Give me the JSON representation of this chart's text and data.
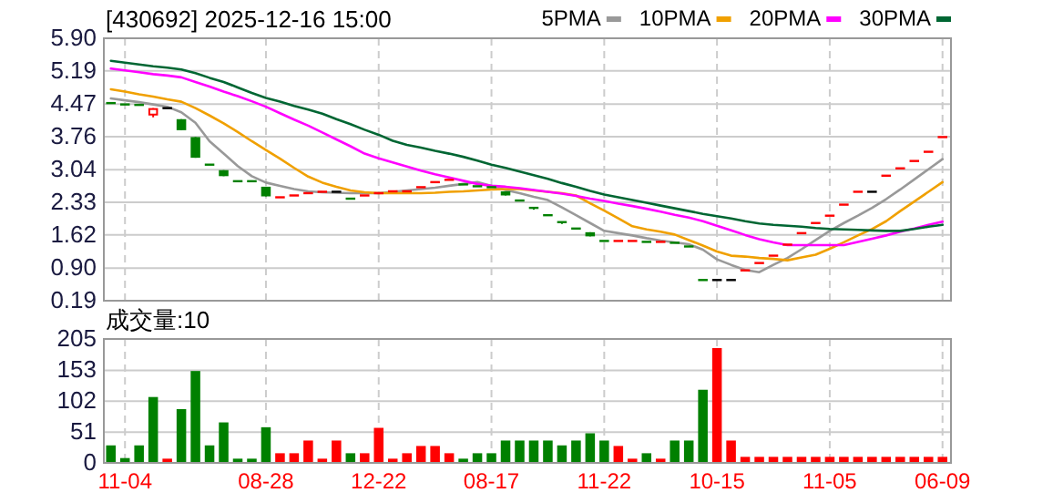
{
  "chart_data": [
    {
      "type": "candlestick",
      "title": "[430692] 2025-12-16 15:00",
      "categories": [
        null,
        null,
        null,
        null,
        null,
        null,
        null,
        null,
        null,
        null,
        null,
        null,
        null,
        null,
        null,
        null,
        null,
        null,
        null,
        null,
        null,
        null,
        null,
        null,
        null,
        null,
        null,
        null,
        null,
        null,
        null,
        null,
        null,
        null,
        null,
        null,
        null,
        null,
        null,
        null,
        null,
        null,
        null,
        null,
        null,
        null,
        null,
        null,
        null,
        null,
        null,
        null,
        null,
        null,
        null,
        null,
        null,
        null,
        null,
        null
      ],
      "ohlc": [
        [
          4.49,
          4.49,
          4.49,
          4.49
        ],
        [
          4.46,
          4.46,
          4.46,
          4.46
        ],
        [
          4.45,
          4.45,
          4.45,
          4.45
        ],
        [
          4.22,
          4.38,
          4.18,
          4.38
        ],
        [
          4.38,
          4.38,
          4.38,
          4.38
        ],
        [
          4.14,
          4.14,
          3.9,
          3.9
        ],
        [
          3.75,
          3.75,
          3.3,
          3.3
        ],
        [
          3.15,
          3.15,
          3.15,
          3.15
        ],
        [
          3.03,
          3.03,
          2.9,
          2.9
        ],
        [
          2.79,
          2.79,
          2.79,
          2.79
        ],
        [
          2.79,
          2.79,
          2.79,
          2.79
        ],
        [
          2.67,
          2.67,
          2.46,
          2.46
        ],
        [
          2.44,
          2.44,
          2.44,
          2.44
        ],
        [
          2.48,
          2.48,
          2.48,
          2.48
        ],
        [
          2.53,
          2.53,
          2.53,
          2.53
        ],
        [
          2.56,
          2.56,
          2.56,
          2.56
        ],
        [
          2.56,
          2.56,
          2.56,
          2.56
        ],
        [
          2.41,
          2.41,
          2.41,
          2.41
        ],
        [
          2.48,
          2.48,
          2.48,
          2.48
        ],
        [
          2.53,
          2.53,
          2.53,
          2.53
        ],
        [
          2.57,
          2.57,
          2.57,
          2.57
        ],
        [
          2.57,
          2.57,
          2.57,
          2.57
        ],
        [
          2.66,
          2.66,
          2.66,
          2.66
        ],
        [
          2.77,
          2.77,
          2.77,
          2.77
        ],
        [
          2.82,
          2.82,
          2.82,
          2.82
        ],
        [
          2.72,
          2.72,
          2.72,
          2.72
        ],
        [
          2.68,
          2.68,
          2.68,
          2.68
        ],
        [
          2.66,
          2.66,
          2.66,
          2.66
        ],
        [
          2.57,
          2.57,
          2.48,
          2.48
        ],
        [
          2.37,
          2.37,
          2.37,
          2.37
        ],
        [
          2.21,
          2.21,
          2.17,
          2.21
        ],
        [
          2.05,
          2.05,
          2.05,
          2.05
        ],
        [
          1.9,
          1.9,
          1.86,
          1.9
        ],
        [
          1.76,
          1.76,
          1.76,
          1.76
        ],
        [
          1.68,
          1.68,
          1.59,
          1.59
        ],
        [
          1.49,
          1.49,
          1.49,
          1.49
        ],
        [
          1.49,
          1.49,
          1.49,
          1.49
        ],
        [
          1.49,
          1.49,
          1.49,
          1.49
        ],
        [
          1.47,
          1.47,
          1.47,
          1.47
        ],
        [
          1.47,
          1.47,
          1.47,
          1.47
        ],
        [
          1.45,
          1.45,
          1.45,
          1.45
        ],
        [
          1.37,
          1.37,
          1.37,
          1.37
        ],
        [
          0.64,
          0.64,
          0.64,
          0.64
        ],
        [
          0.64,
          0.64,
          0.64,
          0.64
        ],
        [
          0.64,
          0.64,
          0.64,
          0.64
        ],
        [
          0.85,
          0.85,
          0.85,
          0.85
        ],
        [
          1.01,
          1.01,
          1.01,
          1.01
        ],
        [
          1.17,
          1.17,
          1.17,
          1.17
        ],
        [
          1.41,
          1.41,
          1.41,
          1.41
        ],
        [
          1.66,
          1.66,
          1.66,
          1.66
        ],
        [
          1.88,
          1.88,
          1.88,
          1.88
        ],
        [
          2.04,
          2.04,
          2.04,
          2.04
        ],
        [
          2.28,
          2.28,
          2.28,
          2.28
        ],
        [
          2.56,
          2.56,
          2.56,
          2.56
        ],
        [
          2.56,
          2.56,
          2.56,
          2.56
        ],
        [
          2.91,
          2.91,
          2.91,
          2.91
        ],
        [
          3.07,
          3.07,
          3.07,
          3.07
        ],
        [
          3.23,
          3.23,
          3.23,
          3.23
        ],
        [
          3.43,
          3.43,
          3.43,
          3.43
        ],
        [
          3.75,
          3.75,
          3.75,
          3.75
        ]
      ],
      "colors": [
        "#008000",
        "#008000",
        "#008000",
        "#ff0000",
        "#000000",
        "#008000",
        "#008000",
        "#008000",
        "#008000",
        "#008000",
        "#008000",
        "#008000",
        "#ff0000",
        "#ff0000",
        "#ff0000",
        "#ff0000",
        "#000000",
        "#008000",
        "#ff0000",
        "#ff0000",
        "#ff0000",
        "#ff0000",
        "#ff0000",
        "#ff0000",
        "#ff0000",
        "#008000",
        "#008000",
        "#008000",
        "#008000",
        "#008000",
        "#008000",
        "#008000",
        "#008000",
        "#008000",
        "#008000",
        "#008000",
        "#ff0000",
        "#ff0000",
        "#008000",
        "#ff0000",
        "#008000",
        "#008000",
        "#008000",
        "#000000",
        "#000000",
        "#ff0000",
        "#ff0000",
        "#ff0000",
        "#ff0000",
        "#ff0000",
        "#ff0000",
        "#ff0000",
        "#ff0000",
        "#ff0000",
        "#000000",
        "#ff0000",
        "#ff0000",
        "#ff0000",
        "#ff0000",
        "#ff0000"
      ],
      "series": [
        {
          "name": "5PMA",
          "type": "line",
          "color": "#999999",
          "values": [
            4.59,
            4.55,
            4.51,
            4.46,
            4.41,
            4.29,
            4.06,
            3.66,
            3.39,
            3.12,
            2.9,
            2.76,
            2.69,
            2.62,
            2.57,
            2.55,
            2.54,
            2.53,
            2.53,
            2.53,
            2.56,
            2.59,
            2.62,
            2.65,
            2.69,
            2.73,
            2.77,
            2.69,
            2.6,
            2.53,
            2.45,
            2.38,
            2.22,
            2.05,
            1.88,
            1.71,
            1.66,
            1.61,
            1.55,
            1.5,
            1.46,
            1.42,
            1.3,
            1.09,
            0.97,
            0.86,
            0.81,
            0.97,
            1.12,
            1.31,
            1.51,
            1.71,
            1.88,
            2.04,
            2.21,
            2.4,
            2.61,
            2.83,
            3.05,
            3.27
          ]
        },
        {
          "name": "10PMA",
          "type": "line",
          "color": "#f0a000",
          "values": [
            4.79,
            4.74,
            4.68,
            4.63,
            4.57,
            4.52,
            4.38,
            4.22,
            4.05,
            3.86,
            3.66,
            3.47,
            3.28,
            3.08,
            2.89,
            2.76,
            2.67,
            2.59,
            2.55,
            2.53,
            2.53,
            2.53,
            2.53,
            2.54,
            2.56,
            2.57,
            2.59,
            2.61,
            2.62,
            2.62,
            2.59,
            2.56,
            2.53,
            2.48,
            2.31,
            2.15,
            1.98,
            1.81,
            1.74,
            1.69,
            1.63,
            1.51,
            1.39,
            1.26,
            1.17,
            1.15,
            1.12,
            1.1,
            1.07,
            1.13,
            1.19,
            1.32,
            1.46,
            1.61,
            1.75,
            1.92,
            2.14,
            2.35,
            2.56,
            2.77
          ]
        },
        {
          "name": "20PMA",
          "type": "line",
          "color": "#ff00ff",
          "values": [
            5.24,
            5.2,
            5.16,
            5.12,
            5.09,
            5.05,
            4.95,
            4.85,
            4.74,
            4.64,
            4.53,
            4.41,
            4.27,
            4.13,
            4.0,
            3.85,
            3.7,
            3.55,
            3.39,
            3.29,
            3.2,
            3.11,
            3.02,
            2.94,
            2.87,
            2.8,
            2.73,
            2.69,
            2.67,
            2.64,
            2.6,
            2.56,
            2.52,
            2.47,
            2.41,
            2.36,
            2.3,
            2.25,
            2.19,
            2.13,
            2.06,
            2.0,
            1.92,
            1.82,
            1.72,
            1.62,
            1.53,
            1.46,
            1.4,
            1.4,
            1.4,
            1.4,
            1.4,
            1.47,
            1.54,
            1.61,
            1.69,
            1.76,
            1.84,
            1.91
          ]
        },
        {
          "name": "30PMA",
          "type": "line",
          "color": "#006633",
          "values": [
            5.41,
            5.37,
            5.33,
            5.29,
            5.26,
            5.22,
            5.14,
            5.04,
            4.95,
            4.83,
            4.71,
            4.6,
            4.52,
            4.43,
            4.35,
            4.26,
            4.14,
            4.03,
            3.91,
            3.8,
            3.67,
            3.58,
            3.52,
            3.45,
            3.39,
            3.32,
            3.24,
            3.15,
            3.08,
            3.0,
            2.92,
            2.84,
            2.75,
            2.67,
            2.58,
            2.5,
            2.44,
            2.38,
            2.32,
            2.26,
            2.2,
            2.14,
            2.08,
            2.03,
            1.98,
            1.92,
            1.87,
            1.84,
            1.82,
            1.8,
            1.77,
            1.75,
            1.74,
            1.73,
            1.72,
            1.71,
            1.71,
            1.75,
            1.8,
            1.84
          ]
        }
      ],
      "ylim": [
        0.19,
        5.9
      ],
      "yticks": [
        {
          "value": 5.9,
          "label": "5.90"
        },
        5.19,
        4.47,
        3.76,
        3.04,
        2.33,
        1.62,
        {
          "value": 0.9,
          "label": "0.90"
        },
        0.19
      ],
      "grid": true,
      "legend": "top right",
      "tick_labels": "y"
    },
    {
      "type": "bar",
      "title": "成交量:10",
      "categories": [
        null,
        "11-04",
        null,
        null,
        null,
        null,
        null,
        null,
        null,
        null,
        null,
        "08-28",
        null,
        null,
        null,
        null,
        null,
        null,
        null,
        "12-22",
        null,
        null,
        null,
        null,
        null,
        null,
        null,
        "08-17",
        null,
        null,
        null,
        null,
        null,
        null,
        null,
        "11-22",
        null,
        null,
        null,
        null,
        null,
        null,
        null,
        "10-15",
        null,
        null,
        null,
        null,
        null,
        null,
        null,
        "11-05",
        null,
        null,
        null,
        null,
        null,
        null,
        null,
        "06-09"
      ],
      "values": [
        29,
        8,
        29,
        109,
        7,
        89,
        152,
        29,
        67,
        7,
        7,
        59,
        16,
        16,
        37,
        7,
        37,
        16,
        16,
        58,
        7,
        16,
        28,
        28,
        16,
        7,
        16,
        16,
        37,
        37,
        37,
        37,
        29,
        37,
        49,
        37,
        28,
        7,
        16,
        7,
        37,
        37,
        121,
        190,
        37,
        10,
        10,
        10,
        10,
        10,
        10,
        10,
        10,
        10,
        10,
        10,
        10,
        10,
        10,
        10
      ],
      "colors": [
        "#008000",
        "#008000",
        "#008000",
        "#008000",
        "#ff0000",
        "#008000",
        "#008000",
        "#008000",
        "#008000",
        "#008000",
        "#008000",
        "#008000",
        "#ff0000",
        "#ff0000",
        "#ff0000",
        "#ff0000",
        "#ff0000",
        "#008000",
        "#ff0000",
        "#ff0000",
        "#ff0000",
        "#ff0000",
        "#ff0000",
        "#ff0000",
        "#ff0000",
        "#008000",
        "#008000",
        "#008000",
        "#008000",
        "#008000",
        "#008000",
        "#008000",
        "#008000",
        "#008000",
        "#008000",
        "#008000",
        "#ff0000",
        "#ff0000",
        "#008000",
        "#ff0000",
        "#008000",
        "#008000",
        "#008000",
        "#ff0000",
        "#ff0000",
        "#ff0000",
        "#ff0000",
        "#ff0000",
        "#ff0000",
        "#ff0000",
        "#ff0000",
        "#ff0000",
        "#ff0000",
        "#ff0000",
        "#ff0000",
        "#ff0000",
        "#ff0000",
        "#ff0000",
        "#ff0000",
        "#ff0000"
      ],
      "ylim": [
        0,
        205
      ],
      "yticks": [
        0,
        51,
        102,
        153,
        205
      ],
      "grid": true
    }
  ]
}
